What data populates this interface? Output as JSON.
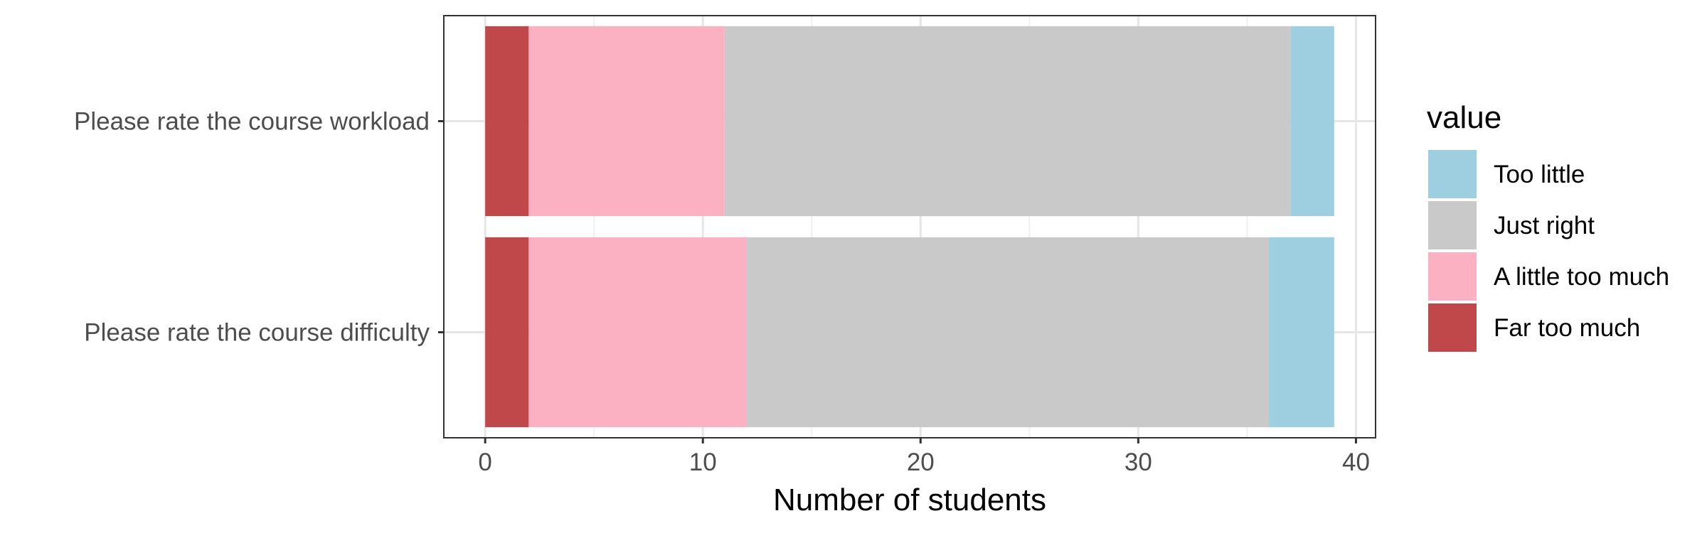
{
  "chart_data": {
    "type": "bar",
    "orientation": "horizontal",
    "stacked": true,
    "categories": [
      "Please rate the course workload",
      "Please rate the course difficulty"
    ],
    "series": [
      {
        "name": "Far too much",
        "values": [
          2,
          2
        ],
        "color": "#c0474a"
      },
      {
        "name": "A little too much",
        "values": [
          9,
          10
        ],
        "color": "#fbb1c2"
      },
      {
        "name": "Just right",
        "values": [
          26,
          24
        ],
        "color": "#c9c9c9"
      },
      {
        "name": "Too little",
        "values": [
          2,
          3
        ],
        "color": "#9ecfe0"
      }
    ],
    "xlabel": "Number of students",
    "ylabel": "",
    "xlim": [
      -1.9,
      40.9
    ],
    "xticks": [
      0,
      10,
      20,
      30,
      40
    ],
    "grid": true,
    "legend": {
      "title": "value",
      "placement": "right",
      "order": [
        "Too little",
        "Just right",
        "A little too much",
        "Far too much"
      ]
    }
  }
}
